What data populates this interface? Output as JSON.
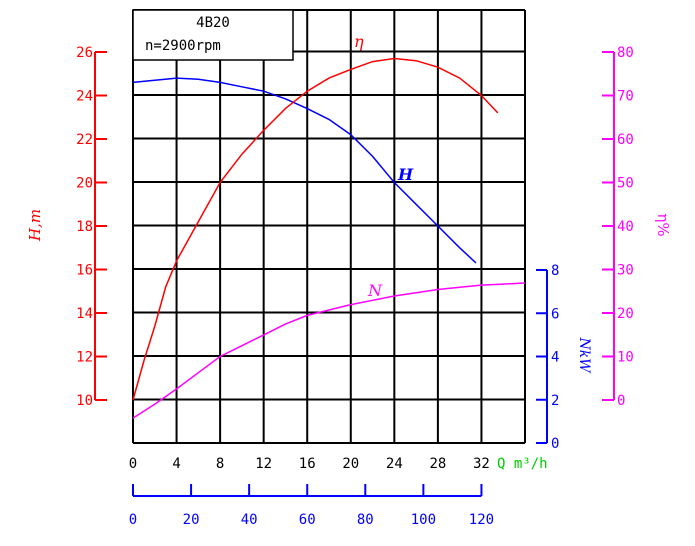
{
  "chart_data": {
    "type": "line",
    "title": "4B20",
    "subtitle": "n=2900rpm",
    "grid": true,
    "xlabel": "Q m³/h",
    "xlim": [
      0,
      36
    ],
    "xticks": [
      0,
      4,
      8,
      12,
      16,
      20,
      24,
      28,
      32
    ],
    "x2_ticks": [
      0,
      20,
      40,
      60,
      80,
      100,
      120
    ],
    "x2_range": [
      0,
      120
    ],
    "axes": {
      "H": {
        "label": "H,m",
        "range": [
          10,
          26
        ],
        "ticks": [
          10,
          12,
          14,
          16,
          18,
          20,
          22,
          24,
          26
        ],
        "color": "#ff0000"
      },
      "eta": {
        "label": "η%",
        "range": [
          0,
          80
        ],
        "ticks": [
          0,
          10,
          20,
          30,
          40,
          50,
          60,
          70,
          80
        ],
        "color": "#ff00ff"
      },
      "N": {
        "label": "NkW",
        "range": [
          0,
          8
        ],
        "ticks": [
          0,
          2,
          4,
          6,
          8
        ],
        "color": "#0000ff"
      }
    },
    "x2_color": "#0000ff",
    "xlabel_color": "#00cc00",
    "series": [
      {
        "name": "H",
        "axis": "H",
        "color": "#0000ff",
        "x": [
          0,
          2,
          4,
          6,
          8,
          10,
          12,
          14,
          16,
          18,
          20,
          22,
          24,
          26,
          28,
          30,
          31.5
        ],
        "y": [
          24.6,
          24.7,
          24.8,
          24.75,
          24.6,
          24.4,
          24.2,
          23.85,
          23.4,
          22.9,
          22.2,
          21.2,
          20.0,
          19.0,
          18.0,
          17.0,
          16.3
        ]
      },
      {
        "name": "η",
        "axis": "eta",
        "color": "#ff0000",
        "x": [
          0,
          1,
          2,
          3,
          4,
          6,
          8,
          10,
          12,
          14,
          16,
          18,
          20,
          22,
          24,
          26,
          28,
          30,
          32,
          33.5
        ],
        "y": [
          0,
          9,
          17,
          26,
          32,
          41,
          50,
          56.5,
          62,
          67,
          71,
          74,
          76,
          77.8,
          78.5,
          78,
          76.5,
          74,
          70,
          66
        ]
      },
      {
        "name": "N",
        "axis": "N",
        "color": "#ff00ff",
        "x": [
          0,
          2,
          4,
          6,
          8,
          10,
          12,
          14,
          16,
          18,
          20,
          22,
          24,
          26,
          28,
          30,
          32,
          34,
          36
        ],
        "y": [
          1.15,
          1.8,
          2.5,
          3.25,
          4.0,
          4.5,
          5.0,
          5.5,
          5.9,
          6.15,
          6.4,
          6.6,
          6.8,
          6.95,
          7.1,
          7.2,
          7.3,
          7.35,
          7.4
        ]
      }
    ]
  }
}
